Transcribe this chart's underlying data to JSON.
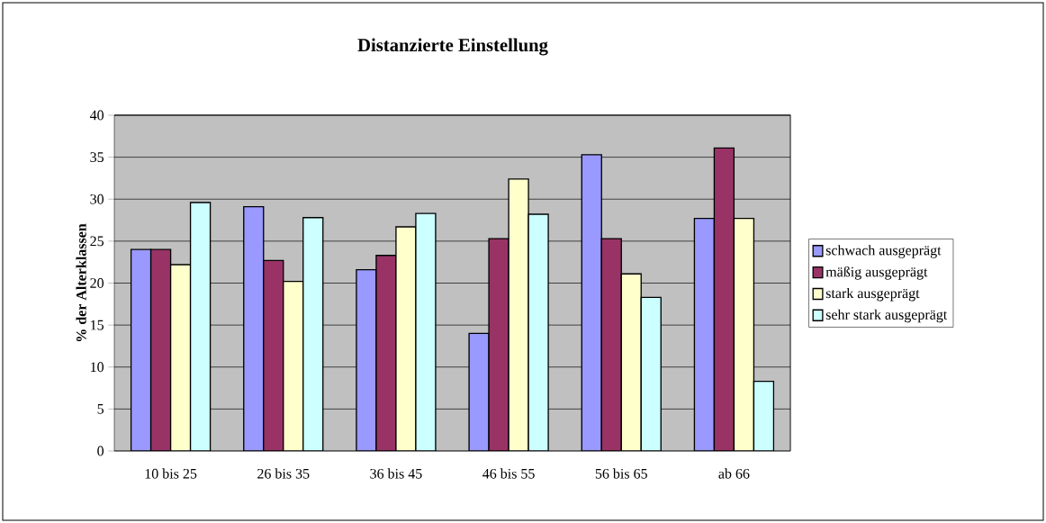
{
  "chart_data": {
    "type": "bar",
    "title": "Distanzierte Einstellung",
    "ylabel": "% der Alterklassen",
    "categories": [
      "10 bis 25",
      "26 bis 35",
      "36 bis 45",
      "46 bis 55",
      "56 bis 65",
      "ab 66"
    ],
    "series": [
      {
        "name": "schwach ausgeprägt",
        "color": "#9999ff",
        "values": [
          24.0,
          29.1,
          21.6,
          14.0,
          35.3,
          27.7
        ]
      },
      {
        "name": "mäßig ausgeprägt",
        "color": "#993366",
        "values": [
          24.0,
          22.7,
          23.3,
          25.3,
          25.3,
          36.1
        ]
      },
      {
        "name": "stark ausgeprägt",
        "color": "#ffffcc",
        "values": [
          22.2,
          20.2,
          26.7,
          32.4,
          21.1,
          27.7
        ]
      },
      {
        "name": "sehr stark ausgeprägt",
        "color": "#ccffff",
        "values": [
          29.6,
          27.8,
          28.3,
          28.2,
          18.3,
          8.3
        ]
      }
    ],
    "ylim": [
      0,
      40
    ],
    "yticks": [
      0,
      5,
      10,
      15,
      20,
      25,
      30,
      35,
      40
    ],
    "grid": "y",
    "legend": "right"
  }
}
